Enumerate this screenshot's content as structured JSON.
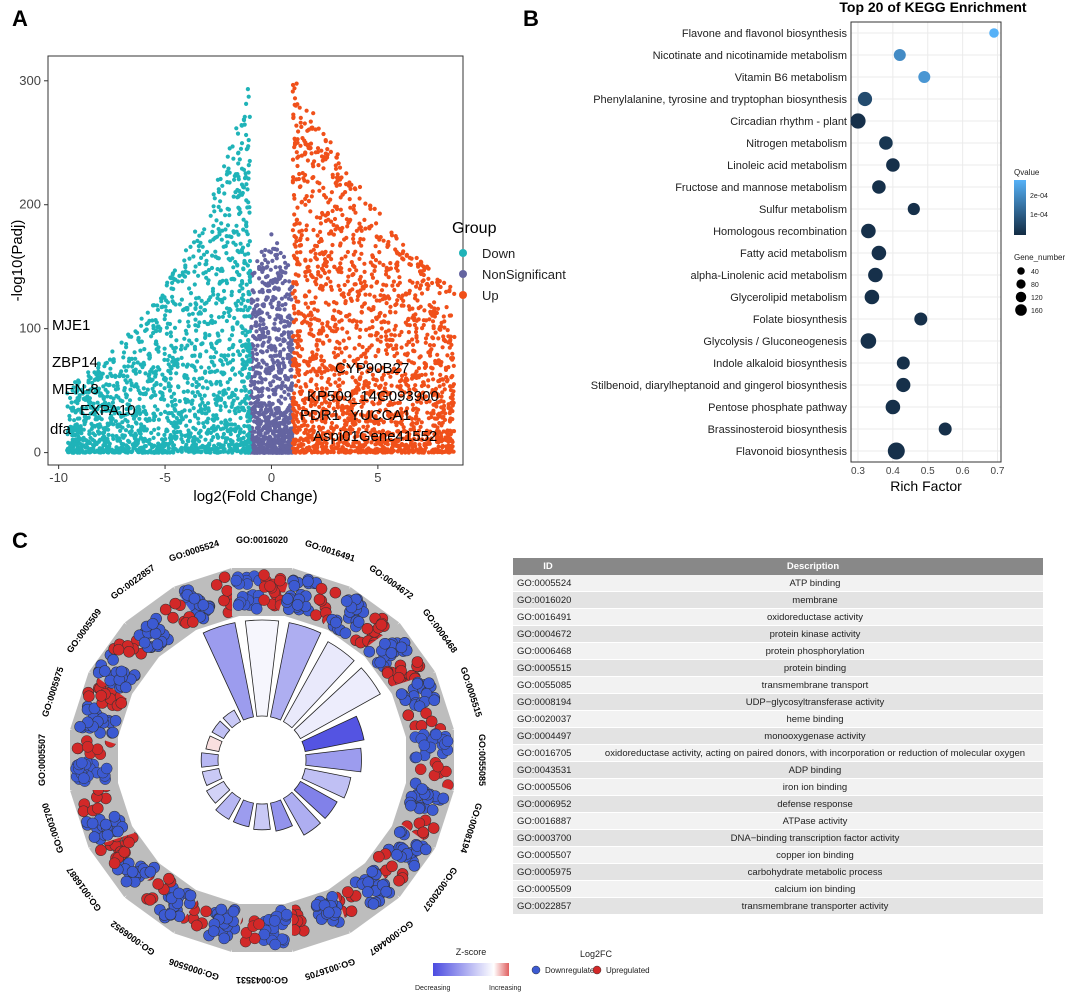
{
  "panels": {
    "a": "A",
    "b": "B",
    "c": "C"
  },
  "colors": {
    "down": "#1fb3b8",
    "nonsig": "#6464a0",
    "up": "#f0501a",
    "kegg_low": "#132b43",
    "kegg_high": "#56b1f7",
    "bar_dec": "#4b4be0",
    "bar_inc": "#e06060",
    "dot_down": "#3c5ad2",
    "dot_up": "#d22828"
  },
  "volcano": {
    "xlabel": "log2(Fold Change)",
    "ylabel": "-log10(Padj)",
    "xticks": [
      -10,
      -5,
      0,
      5
    ],
    "yticks": [
      0,
      100,
      200,
      300
    ],
    "xlim": [
      -10.5,
      9
    ],
    "ylim": [
      -10,
      320
    ],
    "legend": {
      "title": "Group",
      "items": [
        "Down",
        "NonSignificant",
        "Up"
      ]
    },
    "gene_labels_left": [
      "MJE1",
      "ZBP14",
      "MEN-8",
      "EXPA10",
      "dfa"
    ],
    "gene_labels_right": [
      "CYP90B27",
      "KP509_14G093900",
      "PDR1",
      "YUCCA1",
      "Aspi01Gene41552"
    ]
  },
  "chart_data": [
    {
      "type": "scatter",
      "title": "Top 20 of  KEGG Enrichment",
      "xlabel": "Rich Factor",
      "xticks": [
        0.3,
        0.4,
        0.5,
        0.6,
        0.7
      ],
      "xlim": [
        0.28,
        0.71
      ],
      "categories": [
        "Flavone and flavonol biosynthesis",
        "Nicotinate and nicotinamide metabolism",
        "Vitamin B6 metabolism",
        "Phenylalanine, tyrosine and tryptophan biosynthesis",
        "Circadian rhythm - plant",
        "Nitrogen metabolism",
        "Linoleic acid metabolism",
        "Fructose and mannose metabolism",
        "Sulfur metabolism",
        "Homologous recombination",
        "Fatty acid metabolism",
        "alpha-Linolenic acid metabolism",
        "Glycerolipid metabolism",
        "Folate biosynthesis",
        "Glycolysis / Gluconeogenesis",
        "Indole alkaloid biosynthesis",
        "Stilbenoid, diarylheptanoid and gingerol biosynthesis",
        "Pentose phosphate pathway",
        "Brassinosteroid biosynthesis",
        "Flavonoid biosynthesis"
      ],
      "rich_factor": [
        0.69,
        0.42,
        0.49,
        0.32,
        0.3,
        0.38,
        0.4,
        0.36,
        0.46,
        0.33,
        0.36,
        0.35,
        0.34,
        0.48,
        0.33,
        0.43,
        0.43,
        0.4,
        0.55,
        0.41
      ],
      "qvalue": [
        0.00025,
        0.00018,
        0.0002,
        6e-05,
        1e-05,
        2e-05,
        1e-05,
        1e-05,
        1e-05,
        1e-05,
        1e-05,
        1e-05,
        1e-05,
        1e-05,
        1e-05,
        1e-05,
        1e-05,
        1e-05,
        1e-05,
        1e-05
      ],
      "gene_number": [
        20,
        45,
        45,
        80,
        100,
        70,
        70,
        70,
        50,
        90,
        90,
        90,
        90,
        60,
        110,
        60,
        80,
        90,
        60,
        140
      ],
      "legend_qvalue": {
        "title": "Qvalue",
        "ticks": [
          "2e-04",
          "1e-04"
        ]
      },
      "legend_size": {
        "title": "Gene_number",
        "values": [
          40,
          80,
          120,
          160
        ]
      }
    },
    {
      "type": "circular-bar",
      "categories": [
        "GO:0005524",
        "GO:0016020",
        "GO:0016491",
        "GO:0004672",
        "GO:0006468",
        "GO:0005515",
        "GO:0055085",
        "GO:0008194",
        "GO:0020037",
        "GO:0004497",
        "GO:0016705",
        "GO:0043531",
        "GO:0005506",
        "GO:0006952",
        "GO:0016887",
        "GO:0003700",
        "GO:0005507",
        "GO:0005975",
        "GO:0005509",
        "GO:0022857"
      ],
      "zscore": [
        -0.55,
        -0.05,
        -0.45,
        -0.12,
        -0.1,
        -0.95,
        -0.55,
        -0.35,
        -0.7,
        -0.45,
        -0.6,
        -0.3,
        -0.55,
        -0.4,
        -0.25,
        -0.3,
        -0.4,
        0.2,
        -0.35,
        -0.3
      ],
      "gene_count": [
        100,
        100,
        100,
        95,
        95,
        60,
        55,
        45,
        40,
        40,
        25,
        22,
        20,
        20,
        15,
        12,
        12,
        8,
        8,
        8
      ],
      "legend_z": {
        "title": "Z-score",
        "low": "Decreasing",
        "high": "Increasing"
      },
      "legend_fc": {
        "title": "Log2FC",
        "items": [
          "Downregulated",
          "Upregulated"
        ]
      }
    }
  ],
  "go_table": {
    "headers": [
      "ID",
      "Description"
    ],
    "rows": [
      [
        "GO:0005524",
        "ATP binding"
      ],
      [
        "GO:0016020",
        "membrane"
      ],
      [
        "GO:0016491",
        "oxidoreductase activity"
      ],
      [
        "GO:0004672",
        "protein kinase activity"
      ],
      [
        "GO:0006468",
        "protein phosphorylation"
      ],
      [
        "GO:0005515",
        "protein binding"
      ],
      [
        "GO:0055085",
        "transmembrane transport"
      ],
      [
        "GO:0008194",
        "UDP−glycosyltransferase activity"
      ],
      [
        "GO:0020037",
        "heme binding"
      ],
      [
        "GO:0004497",
        "monooxygenase activity"
      ],
      [
        "GO:0016705",
        "oxidoreductase activity, acting on paired donors, with incorporation or reduction of molecular oxygen"
      ],
      [
        "GO:0043531",
        "ADP binding"
      ],
      [
        "GO:0005506",
        "iron ion binding"
      ],
      [
        "GO:0006952",
        "defense response"
      ],
      [
        "GO:0016887",
        "ATPase activity"
      ],
      [
        "GO:0003700",
        "DNA−binding transcription factor activity"
      ],
      [
        "GO:0005507",
        "copper ion binding"
      ],
      [
        "GO:0005975",
        "carbohydrate metabolic process"
      ],
      [
        "GO:0005509",
        "calcium ion binding"
      ],
      [
        "GO:0022857",
        "transmembrane transporter activity"
      ]
    ]
  }
}
